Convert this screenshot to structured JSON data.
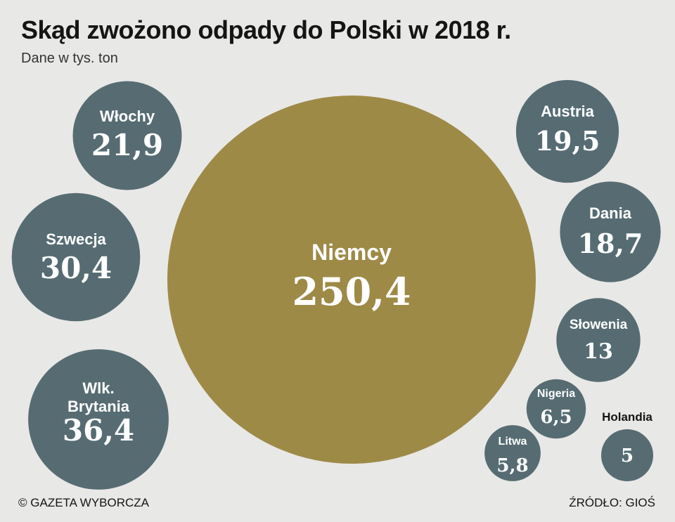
{
  "title": "Skąd zwożono odpady do Polski w 2018 r.",
  "subtitle": "Dane w tys. ton",
  "copyright": "© GAZETA WYBORCZA",
  "source": "ŹRÓDŁO: GIOŚ",
  "colors": {
    "big": "#9e8a47",
    "small": "#566c72",
    "background": "#e8e8e6"
  },
  "chart_data": {
    "type": "bubble",
    "title": "Skąd zwożono odpady do Polski w 2018 r.",
    "unit": "tys. ton",
    "items": [
      {
        "name": "Niemcy",
        "value": 250.4,
        "display": "250,4"
      },
      {
        "name": "Wlk. Brytania",
        "value": 36.4,
        "display": "36,4"
      },
      {
        "name": "Szwecja",
        "value": 30.4,
        "display": "30,4"
      },
      {
        "name": "Włochy",
        "value": 21.9,
        "display": "21,9"
      },
      {
        "name": "Austria",
        "value": 19.5,
        "display": "19,5"
      },
      {
        "name": "Dania",
        "value": 18.7,
        "display": "18,7"
      },
      {
        "name": "Słowenia",
        "value": 13,
        "display": "13"
      },
      {
        "name": "Nigeria",
        "value": 6.5,
        "display": "6,5"
      },
      {
        "name": "Litwa",
        "value": 5.8,
        "display": "5,8"
      },
      {
        "name": "Holandia",
        "value": 5,
        "display": "5"
      }
    ]
  }
}
